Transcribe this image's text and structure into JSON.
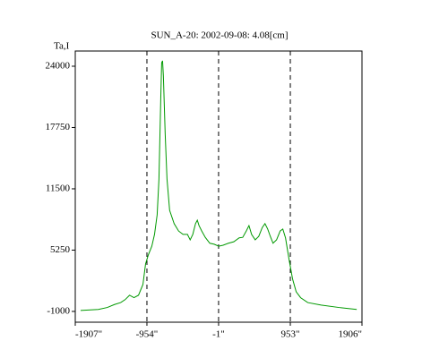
{
  "chart_data": {
    "type": "line",
    "title": "SUN_A-20: 2002-09-08: 4.08[cm]",
    "y_label": "Ta,I",
    "x": [
      -1836,
      -1600,
      -1481,
      -1386,
      -1303,
      -1244,
      -1185,
      -1126,
      -1066,
      -1007,
      -972,
      -936,
      -889,
      -853,
      -818,
      -794,
      -770,
      -758,
      -746,
      -735,
      -711,
      -687,
      -652,
      -592,
      -533,
      -474,
      -415,
      -379,
      -344,
      -308,
      -284,
      -261,
      -225,
      -178,
      -118,
      -59,
      0,
      59,
      130,
      201,
      273,
      320,
      367,
      403,
      438,
      486,
      533,
      580,
      616,
      652,
      687,
      723,
      770,
      818,
      853,
      889,
      936,
      983,
      1031,
      1090,
      1185,
      1363,
      1600,
      1836
    ],
    "series": [
      {
        "name": "Ta,I",
        "color": "#009900",
        "values": [
          -900,
          -800,
          -600,
          -300,
          -100,
          200,
          650,
          400,
          650,
          1750,
          3850,
          4750,
          5650,
          6850,
          8850,
          12500,
          20700,
          24350,
          24550,
          23000,
          17050,
          12500,
          9300,
          7950,
          7200,
          6850,
          6850,
          6300,
          6850,
          7950,
          8300,
          7750,
          7200,
          6550,
          5950,
          5850,
          5650,
          5750,
          5950,
          6100,
          6500,
          6550,
          7200,
          7750,
          6850,
          6300,
          6650,
          7550,
          7950,
          7400,
          6650,
          5950,
          6300,
          7200,
          7400,
          6500,
          4300,
          2300,
          1000,
          400,
          -100,
          -350,
          -600,
          -800
        ]
      }
    ],
    "xlim": [
      -1907,
      1906
    ],
    "xticks": [
      {
        "value": -1907,
        "label": "-1907\""
      },
      {
        "value": -954,
        "label": "-954\""
      },
      {
        "value": -1,
        "label": "-1\""
      },
      {
        "value": 953,
        "label": "953\""
      },
      {
        "value": 1906,
        "label": "1906\""
      }
    ],
    "ylim": [
      -2100,
      25550
    ],
    "yticks": [
      -1000,
      5250,
      11500,
      17750,
      24000
    ],
    "xgrid": true
  }
}
